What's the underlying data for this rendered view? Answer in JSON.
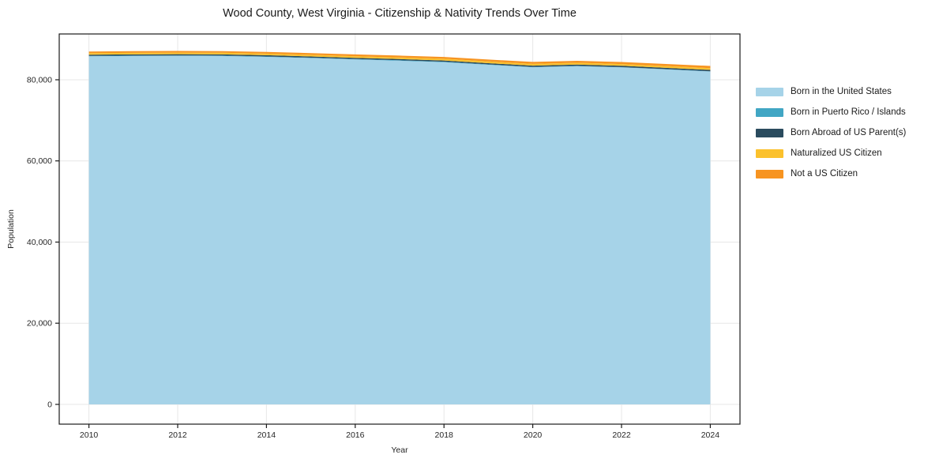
{
  "chart_data": {
    "type": "area",
    "stacked": true,
    "title": "Wood County, West Virginia - Citizenship & Nativity Trends Over Time",
    "xlabel": "Year",
    "ylabel": "Population",
    "x": [
      2010,
      2011,
      2012,
      2013,
      2014,
      2015,
      2016,
      2017,
      2018,
      2019,
      2020,
      2021,
      2022,
      2023,
      2024
    ],
    "series": [
      {
        "name": "Born in the United States",
        "color": "#a6d3e8",
        "values": [
          85800,
          85850,
          85900,
          85850,
          85650,
          85350,
          85000,
          84700,
          84350,
          83700,
          83100,
          83350,
          83050,
          82550,
          82050
        ]
      },
      {
        "name": "Born in Puerto Rico / Islands",
        "color": "#41a6c4",
        "values": [
          100,
          100,
          100,
          100,
          100,
          100,
          100,
          100,
          100,
          90,
          80,
          80,
          70,
          70,
          60
        ]
      },
      {
        "name": "Born Abroad of US Parent(s)",
        "color": "#2a4b5e",
        "values": [
          290,
          295,
          300,
          300,
          300,
          300,
          300,
          300,
          300,
          300,
          300,
          310,
          320,
          325,
          330
        ]
      },
      {
        "name": "Naturalized US Citizen",
        "color": "#fbc12d",
        "values": [
          390,
          395,
          400,
          400,
          400,
          400,
          410,
          410,
          420,
          420,
          430,
          440,
          440,
          445,
          450
        ]
      },
      {
        "name": "Not a US Citizen",
        "color": "#f79421",
        "values": [
          390,
          400,
          410,
          410,
          420,
          430,
          440,
          450,
          460,
          470,
          480,
          500,
          500,
          510,
          520
        ]
      }
    ],
    "xticks": [
      2010,
      2012,
      2014,
      2016,
      2018,
      2020,
      2022,
      2024
    ],
    "xtick_labels": [
      "2010",
      "2012",
      "2014",
      "2016",
      "2018",
      "2020",
      "2022",
      "2024"
    ],
    "yticks": [
      0,
      20000,
      40000,
      60000,
      80000
    ],
    "ytick_labels": [
      "0",
      "20,000",
      "40,000",
      "60,000",
      "80,000"
    ],
    "xlim": [
      2009.33,
      2024.67
    ],
    "ylim": [
      -4870,
      91290
    ],
    "grid": true,
    "legend_position": "right",
    "colors": {
      "grid": "#e7e7e7",
      "spine": "#1a1a1a",
      "tick": "#1a1a1a",
      "text": "#262626",
      "background": "#ffffff"
    }
  }
}
